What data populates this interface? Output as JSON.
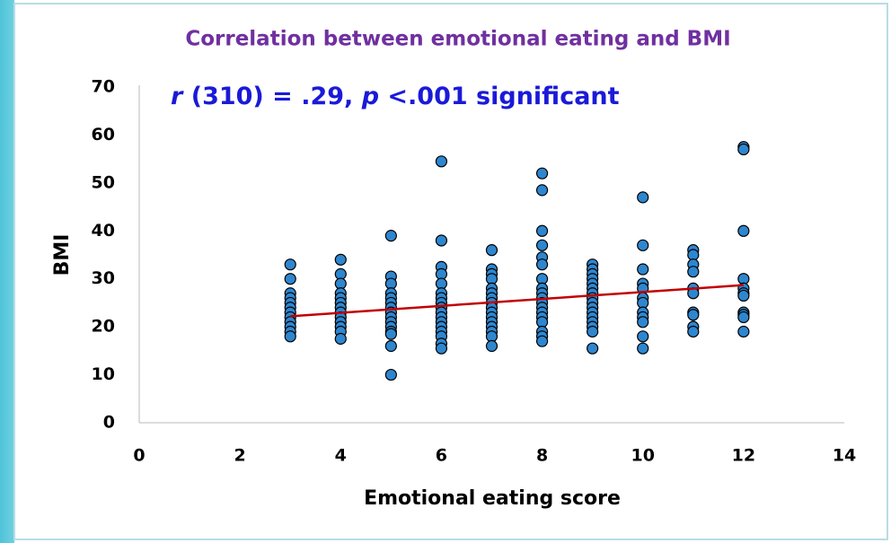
{
  "chart_data": {
    "type": "scatter",
    "title": "Correlation between emotional eating and BMI",
    "annotation": [
      {
        "text": "r",
        "italic": true
      },
      {
        "text": " (310) = .29, ",
        "italic": false
      },
      {
        "text": "p",
        "italic": true
      },
      {
        "text": " <.001 significant",
        "italic": false
      }
    ],
    "x_label": "Emotional eating score",
    "y_label": "BMI",
    "xlim": [
      0,
      14
    ],
    "xticks": [
      0,
      2,
      4,
      6,
      8,
      10,
      12,
      14
    ],
    "ylim": [
      0,
      70
    ],
    "yticks": [
      0,
      10,
      20,
      30,
      40,
      50,
      60,
      70
    ],
    "grid": false,
    "series": [
      {
        "name": "BMI",
        "color": "#2e86cf",
        "x": [
          3,
          3,
          3,
          3,
          3,
          3,
          3,
          3,
          3,
          3,
          3,
          3,
          4,
          4,
          4,
          4,
          4,
          4,
          4,
          4,
          4,
          4,
          4,
          4,
          4,
          5,
          5,
          5,
          5,
          5,
          5,
          5,
          5,
          5,
          5,
          5,
          5,
          5,
          5,
          5,
          6,
          6,
          6,
          6,
          6,
          6,
          6,
          6,
          6,
          6,
          6,
          6,
          6,
          6,
          6,
          6,
          6,
          7,
          7,
          7,
          7,
          7,
          7,
          7,
          7,
          7,
          7,
          7,
          7,
          7,
          7,
          7,
          7,
          8,
          8,
          8,
          8,
          8,
          8,
          8,
          8,
          8,
          8,
          8,
          8,
          8,
          8,
          8,
          8,
          8,
          8,
          9,
          9,
          9,
          9,
          9,
          9,
          9,
          9,
          9,
          9,
          9,
          9,
          9,
          9,
          9,
          9,
          10,
          10,
          10,
          10,
          10,
          10,
          10,
          10,
          10,
          10,
          10,
          10,
          11,
          11,
          11,
          11,
          11,
          11,
          11,
          11,
          11,
          11,
          12,
          12,
          12,
          12,
          12,
          12,
          12,
          12,
          12,
          12,
          12
        ],
        "values": [
          33,
          30,
          27,
          26,
          25,
          24,
          23,
          22,
          21,
          20,
          19,
          18,
          34,
          31,
          29,
          27,
          26,
          25,
          24,
          23,
          22,
          21,
          20,
          19,
          17.5,
          39,
          30.5,
          29,
          27,
          26,
          25,
          24,
          23,
          22,
          21,
          20,
          19,
          18.5,
          16,
          10,
          54.5,
          38,
          32.5,
          31,
          29,
          27,
          26,
          25,
          24,
          23,
          22,
          21,
          20,
          19,
          18,
          16.5,
          15.5,
          36,
          32,
          31,
          30,
          28,
          27,
          26,
          25,
          24,
          23,
          22,
          21,
          20,
          19,
          18,
          16,
          52,
          48.5,
          40,
          37,
          34.5,
          33,
          30,
          28,
          27,
          26,
          25,
          24,
          23,
          22,
          21,
          19,
          18,
          17,
          33,
          32,
          31,
          30,
          29,
          28,
          27,
          26,
          25,
          24,
          23,
          22,
          21,
          20,
          19,
          15.5,
          47,
          37,
          32,
          29,
          28,
          26,
          25,
          23,
          22,
          21,
          18,
          15.5,
          36,
          35,
          33,
          31.5,
          28,
          27,
          23,
          22.5,
          20,
          19,
          57.5,
          57,
          40,
          30,
          28,
          27,
          26.5,
          23,
          22.5,
          22,
          19
        ]
      }
    ],
    "trendline": {
      "x": [
        3,
        12
      ],
      "values": [
        22.2,
        28.7
      ],
      "color": "#c00000"
    }
  }
}
